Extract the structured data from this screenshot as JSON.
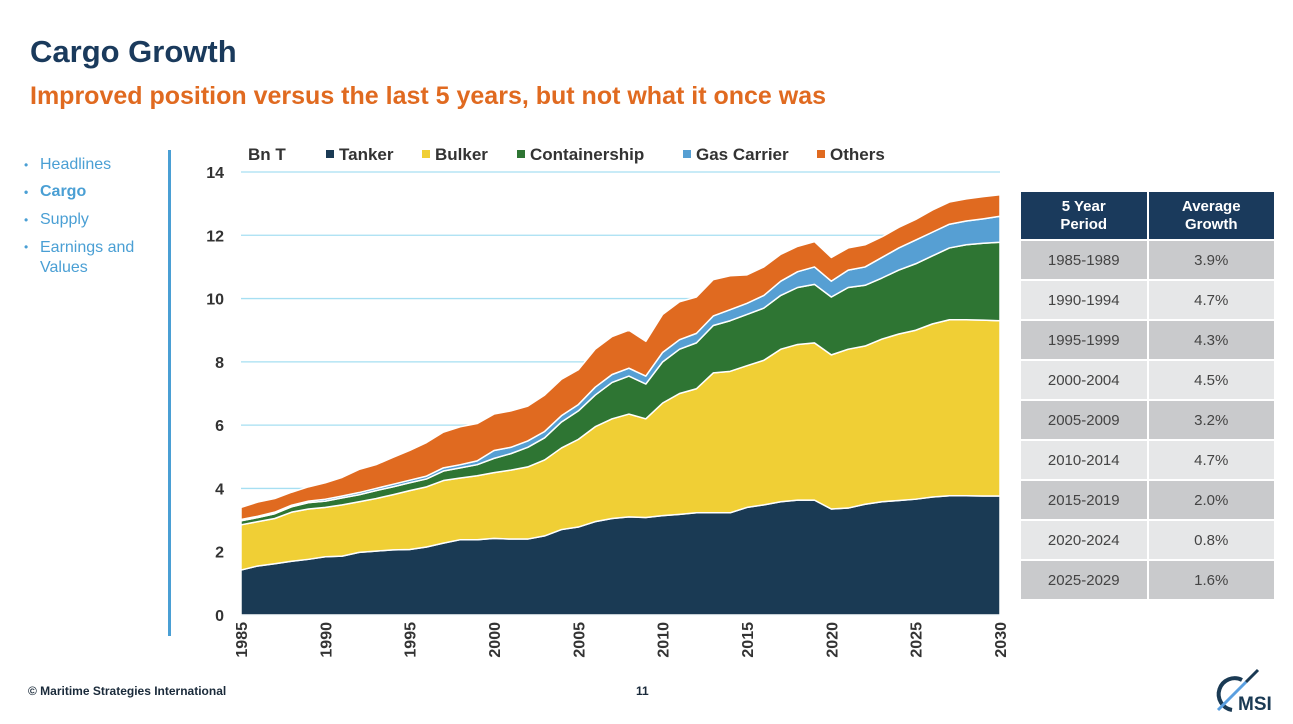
{
  "header": {
    "title": "Cargo Growth",
    "subtitle": "Improved position versus the last 5 years, but not what it once was"
  },
  "sidebar": {
    "items": [
      {
        "label": "Headlines",
        "active": false
      },
      {
        "label": "Cargo",
        "active": true
      },
      {
        "label": "Supply",
        "active": false
      },
      {
        "label": "Earnings and Values",
        "active": false
      }
    ]
  },
  "chart_data": {
    "type": "area",
    "stacked": true,
    "ylabel": "Bn T",
    "ylim": [
      0,
      14
    ],
    "yticks": [
      0,
      2,
      4,
      6,
      8,
      10,
      12,
      14
    ],
    "xlim": [
      1985,
      2030
    ],
    "xticks": [
      1985,
      1990,
      1995,
      2000,
      2005,
      2010,
      2015,
      2020,
      2025,
      2030
    ],
    "grid": "horizontal",
    "legend": "top",
    "x": [
      1985,
      1986,
      1987,
      1988,
      1989,
      1990,
      1991,
      1992,
      1993,
      1994,
      1995,
      1996,
      1997,
      1998,
      1999,
      2000,
      2001,
      2002,
      2003,
      2004,
      2005,
      2006,
      2007,
      2008,
      2009,
      2010,
      2011,
      2012,
      2013,
      2014,
      2015,
      2016,
      2017,
      2018,
      2019,
      2020,
      2021,
      2022,
      2023,
      2024,
      2025,
      2026,
      2027,
      2028,
      2029,
      2030
    ],
    "series": [
      {
        "name": "Tanker",
        "color": "#1a3a54",
        "values": [
          1.42,
          1.55,
          1.62,
          1.7,
          1.76,
          1.84,
          1.86,
          1.98,
          2.02,
          2.06,
          2.07,
          2.15,
          2.27,
          2.38,
          2.38,
          2.42,
          2.4,
          2.4,
          2.5,
          2.7,
          2.78,
          2.95,
          3.05,
          3.1,
          3.08,
          3.14,
          3.18,
          3.23,
          3.23,
          3.23,
          3.4,
          3.48,
          3.58,
          3.63,
          3.63,
          3.35,
          3.38,
          3.5,
          3.58,
          3.62,
          3.66,
          3.73,
          3.77,
          3.77,
          3.76,
          3.76
        ]
      },
      {
        "name": "Bulker",
        "color": "#f0cf35",
        "values": [
          1.43,
          1.4,
          1.43,
          1.55,
          1.59,
          1.56,
          1.62,
          1.6,
          1.66,
          1.74,
          1.86,
          1.9,
          1.98,
          1.95,
          2.02,
          2.08,
          2.18,
          2.28,
          2.4,
          2.58,
          2.77,
          3.0,
          3.15,
          3.25,
          3.12,
          3.56,
          3.82,
          3.92,
          4.42,
          4.47,
          4.48,
          4.57,
          4.82,
          4.92,
          4.97,
          4.87,
          5.02,
          5.0,
          5.14,
          5.26,
          5.34,
          5.47,
          5.56,
          5.56,
          5.56,
          5.54
        ]
      },
      {
        "name": "Containership",
        "color": "#2e7533",
        "values": [
          0.13,
          0.13,
          0.15,
          0.17,
          0.2,
          0.2,
          0.22,
          0.22,
          0.25,
          0.25,
          0.25,
          0.25,
          0.3,
          0.32,
          0.35,
          0.45,
          0.52,
          0.62,
          0.7,
          0.82,
          0.9,
          1.0,
          1.15,
          1.2,
          1.1,
          1.3,
          1.4,
          1.45,
          1.5,
          1.6,
          1.62,
          1.65,
          1.7,
          1.8,
          1.85,
          1.83,
          1.95,
          1.92,
          1.93,
          2.02,
          2.1,
          2.15,
          2.27,
          2.37,
          2.43,
          2.48
        ]
      },
      {
        "name": "Gas Carrier",
        "color": "#569fd3",
        "values": [
          0.04,
          0.04,
          0.05,
          0.05,
          0.05,
          0.06,
          0.06,
          0.07,
          0.07,
          0.08,
          0.08,
          0.09,
          0.1,
          0.1,
          0.12,
          0.25,
          0.2,
          0.2,
          0.2,
          0.2,
          0.2,
          0.25,
          0.25,
          0.25,
          0.25,
          0.3,
          0.3,
          0.3,
          0.3,
          0.35,
          0.35,
          0.4,
          0.45,
          0.5,
          0.55,
          0.5,
          0.55,
          0.58,
          0.65,
          0.7,
          0.75,
          0.75,
          0.75,
          0.75,
          0.77,
          0.82
        ]
      },
      {
        "name": "Others",
        "color": "#e06a20",
        "values": [
          0.38,
          0.45,
          0.43,
          0.41,
          0.45,
          0.52,
          0.59,
          0.73,
          0.75,
          0.85,
          0.94,
          1.06,
          1.13,
          1.2,
          1.18,
          1.15,
          1.15,
          1.1,
          1.15,
          1.15,
          1.1,
          1.2,
          1.2,
          1.2,
          1.1,
          1.2,
          1.2,
          1.15,
          1.15,
          1.07,
          0.9,
          0.9,
          0.85,
          0.8,
          0.8,
          0.75,
          0.7,
          0.7,
          0.65,
          0.65,
          0.65,
          0.7,
          0.7,
          0.7,
          0.7,
          0.68
        ]
      }
    ]
  },
  "table": {
    "headers": [
      "5 Year Period",
      "Average Growth"
    ],
    "rows": [
      [
        "1985-1989",
        "3.9%"
      ],
      [
        "1990-1994",
        "4.7%"
      ],
      [
        "1995-1999",
        "4.3%"
      ],
      [
        "2000-2004",
        "4.5%"
      ],
      [
        "2005-2009",
        "3.2%"
      ],
      [
        "2010-2014",
        "4.7%"
      ],
      [
        "2015-2019",
        "2.0%"
      ],
      [
        "2020-2024",
        "0.8%"
      ],
      [
        "2025-2029",
        "1.6%"
      ]
    ]
  },
  "footer": {
    "copyright": "© Maritime Strategies International",
    "page": "11",
    "logo_text": "MSI"
  }
}
